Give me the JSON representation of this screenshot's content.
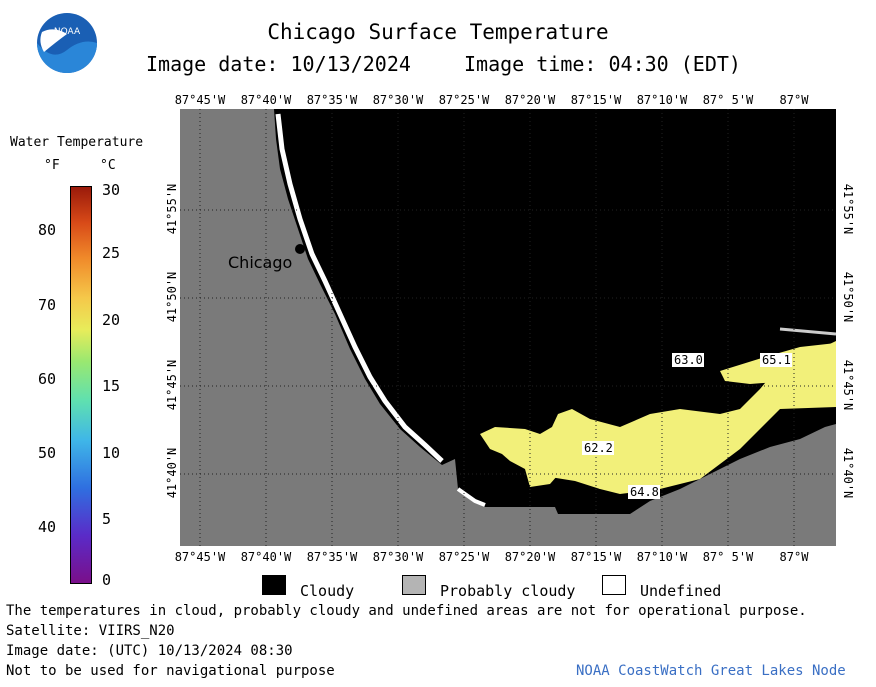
{
  "header": {
    "title": "Chicago Surface Temperature",
    "date_label": "Image date: 10/13/2024",
    "time_label": "Image time: 04:30 (EDT)",
    "logo_text": "NOAA"
  },
  "colorbar": {
    "title": "Water Temperature",
    "unit_f": "°F",
    "unit_c": "°C",
    "f_ticks": [
      "80",
      "70",
      "60",
      "50",
      "40"
    ],
    "c_ticks": [
      "30",
      "25",
      "20",
      "15",
      "10",
      "5",
      "0"
    ]
  },
  "map": {
    "lon_labels": [
      "87°45'W",
      "87°40'W",
      "87°35'W",
      "87°30'W",
      "87°25'W",
      "87°20'W",
      "87°15'W",
      "87°10'W",
      "87° 5'W",
      "87°W"
    ],
    "lat_labels": [
      "41°55'N",
      "41°50'N",
      "41°45'N",
      "41°40'N"
    ],
    "city_label": "Chicago",
    "temp_labels": [
      "63.0",
      "65.1",
      "62.2",
      "64.8"
    ]
  },
  "legend": {
    "items": [
      {
        "label": "Cloudy",
        "color": "#000000"
      },
      {
        "label": "Probably cloudy",
        "color": "#b4b4b4"
      },
      {
        "label": "Undefined",
        "color": "#ffffff"
      }
    ]
  },
  "footer": {
    "note": "The temperatures in cloud, probably cloudy and undefined areas are not for operational purpose.",
    "satellite": "Satellite: VIIRS_N20",
    "utc_date": "Image date: (UTC) 10/13/2024  08:30",
    "nav_warning": "Not to be used for navigational purpose",
    "credit": "NOAA CoastWatch Great Lakes Node"
  },
  "colors": {
    "land": "#7a7a7a",
    "cloud": "#000000",
    "warm_water": "#f2f07a",
    "credit_text": "#3a6fc4"
  }
}
